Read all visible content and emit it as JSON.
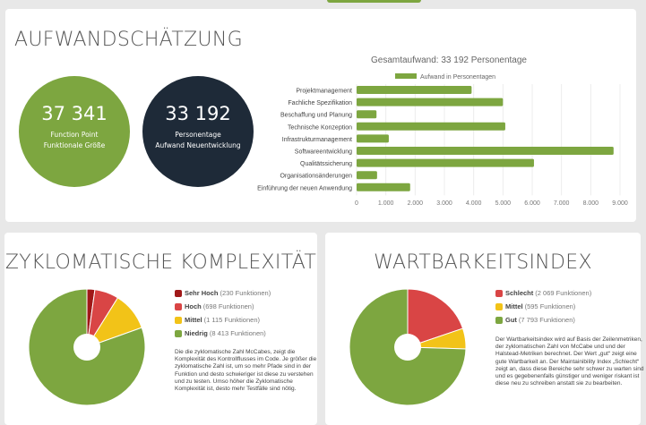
{
  "colors": {
    "green": "#7da640",
    "dark": "#1e2a38",
    "red_dark": "#a01818",
    "red": "#d94545",
    "yellow": "#f2c318",
    "title": "#555555"
  },
  "effort": {
    "title": "AUFWANDSCHÄTZUNG",
    "kpi_function_points": {
      "value": "37 341",
      "line1": "Function Point",
      "line2": "Funktionale Größe"
    },
    "kpi_person_days": {
      "value": "33 192",
      "line1": "Personentage",
      "line2": "Aufwand Neuentwicklung"
    }
  },
  "chart_data": [
    {
      "type": "bar",
      "orientation": "horizontal",
      "title": "Gesamtaufwand: 33 192 Personentage",
      "legend": "top",
      "categories": [
        "Projektmanagement",
        "Fachliche Spezifikation",
        "Beschaffung und Planung",
        "Technische Konzeption",
        "Infrastrukturmanagement",
        "Softwareentwicklung",
        "Qualitätssicherung",
        "Organisationsänderungen",
        "Einführung der neuen Anwendung"
      ],
      "series": [
        {
          "name": "Aufwand in Personentagen",
          "values": [
            3930,
            5000,
            680,
            5080,
            1100,
            8780,
            6060,
            700,
            1830
          ]
        }
      ],
      "xlim": [
        0,
        9000
      ],
      "xticks": [
        "0",
        "1.000",
        "2.000",
        "3.000",
        "4.000",
        "5.000",
        "6.000",
        "7.000",
        "8.000",
        "9.000"
      ],
      "grid": true
    },
    {
      "type": "pie",
      "title": "ZYKLOMATISCHE KOMPLEXITÄT",
      "slices": [
        {
          "label": "Sehr Hoch",
          "detail": "(230 Funktionen)",
          "value": 230,
          "color": "#a01818"
        },
        {
          "label": "Hoch",
          "detail": "(698 Funktionen)",
          "value": 698,
          "color": "#d94545"
        },
        {
          "label": "Mittel",
          "detail": "(1 115 Funktionen)",
          "value": 1115,
          "color": "#f2c318"
        },
        {
          "label": "Niedrig",
          "detail": "(8 413 Funktionen)",
          "value": 8413,
          "color": "#7da640"
        }
      ],
      "description": "Die die zyklomatische Zahl McCabes, zeigt die Komplexität des Kontrollflusses im Code. Je größer die zyklomatische Zahl ist, um so mehr Pfade sind in der Funktion und desto schwieriger ist diese zu verstehen und zu testen. Umso höher die Zyklomatische Komplexität ist, desto mehr Testfälle sind nötig."
    },
    {
      "type": "pie",
      "title": "WARTBARKEITSINDEX",
      "slices": [
        {
          "label": "Schlecht",
          "detail": "(2 069 Funktionen)",
          "value": 2069,
          "color": "#d94545"
        },
        {
          "label": "Mittel",
          "detail": "(595 Funktionen)",
          "value": 595,
          "color": "#f2c318"
        },
        {
          "label": "Gut",
          "detail": "(7 793 Funktionen)",
          "value": 7793,
          "color": "#7da640"
        }
      ],
      "description": "Der Wartbarkeitsindex wird auf Basis der Zeilenmetriken, der zyklomatischen Zahl von McCabe und und der Halstead-Metriken berechnet. Der Wert „gut“ zeigt eine gute Wartbarkeit an. Der Maintainibility Index „Schlecht“ zeigt an, dass diese Bereiche sehr schwer zu warten sind und es gegebenenfalls günstiger und weniger riskant ist diese neu zu schreiben anstatt sie zu bearbeiten."
    }
  ]
}
